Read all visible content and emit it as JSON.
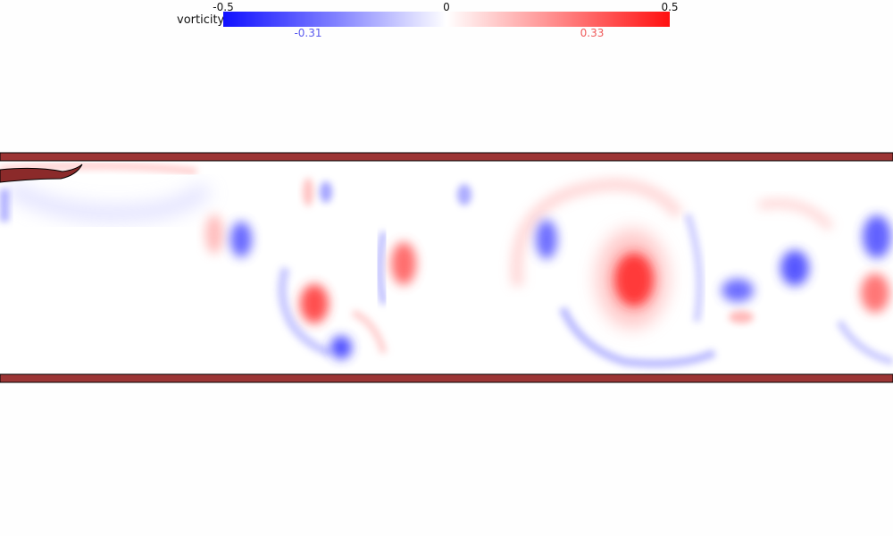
{
  "colorbar": {
    "title": "vorticity",
    "ticks": [
      "-0.5",
      "0",
      "0.5"
    ],
    "min_value": "-0.31",
    "max_value": "0.33",
    "min_color": "#5a5aef",
    "max_color": "#ef5a5a",
    "negative_color": "#1010ff",
    "positive_color": "#ff1010"
  },
  "channel": {
    "wall_color": "#9c3535",
    "flap_color": "#8b2a2a"
  }
}
